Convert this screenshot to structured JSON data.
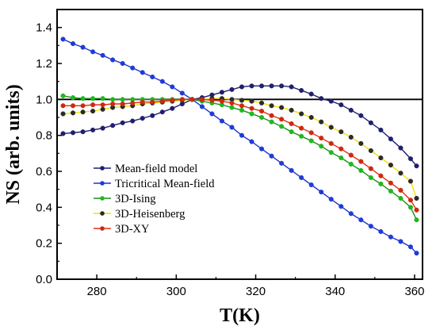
{
  "chart_data": {
    "type": "line",
    "xlabel": "T(K)",
    "ylabel": "NS (arb. units)",
    "xlim": [
      270,
      362
    ],
    "ylim": [
      0,
      1.5
    ],
    "xticks": [
      "280",
      "300",
      "320",
      "340",
      "360"
    ],
    "yticks": [
      "0.0",
      "0.2",
      "0.4",
      "0.6",
      "0.8",
      "1.0",
      "1.2",
      "1.4"
    ],
    "reference_line": 1.0,
    "legend_position": "lower-left",
    "grid": false,
    "series": [
      {
        "name": "Mean-field model",
        "color": "#1f1f6e",
        "marker_color": "#1f1f6e",
        "x": [
          271.5,
          274,
          276.5,
          279,
          281.5,
          284,
          286.5,
          289,
          291.5,
          294,
          296.5,
          299,
          301.5,
          304,
          306.5,
          309,
          311.5,
          314,
          316.5,
          319,
          321.5,
          324,
          326.5,
          329,
          331.5,
          334,
          336.5,
          339,
          341.5,
          344,
          346.5,
          349,
          351.5,
          354,
          356.5,
          359,
          360.5
        ],
        "y": [
          0.81,
          0.815,
          0.82,
          0.83,
          0.84,
          0.855,
          0.87,
          0.88,
          0.895,
          0.91,
          0.93,
          0.95,
          0.975,
          1.0,
          1.01,
          1.025,
          1.04,
          1.055,
          1.07,
          1.075,
          1.075,
          1.075,
          1.075,
          1.07,
          1.05,
          1.03,
          1.005,
          0.99,
          0.97,
          0.94,
          0.91,
          0.87,
          0.83,
          0.78,
          0.73,
          0.67,
          0.63
        ]
      },
      {
        "name": "Tricritical Mean-field",
        "color": "#2332c8",
        "marker_color": "#1e3cd7",
        "x": [
          271.5,
          274,
          276.5,
          279,
          281.5,
          284,
          286.5,
          289,
          291.5,
          294,
          296.5,
          299,
          301.5,
          304,
          306.5,
          309,
          311.5,
          314,
          316.5,
          319,
          321.5,
          324,
          326.5,
          329,
          331.5,
          334,
          336.5,
          339,
          341.5,
          344,
          346.5,
          349,
          351.5,
          354,
          356.5,
          359,
          360.5
        ],
        "y": [
          1.335,
          1.31,
          1.29,
          1.265,
          1.245,
          1.22,
          1.2,
          1.175,
          1.15,
          1.125,
          1.1,
          1.07,
          1.035,
          1.0,
          0.96,
          0.92,
          0.88,
          0.845,
          0.8,
          0.765,
          0.725,
          0.685,
          0.645,
          0.605,
          0.565,
          0.525,
          0.485,
          0.445,
          0.405,
          0.365,
          0.33,
          0.295,
          0.265,
          0.235,
          0.21,
          0.18,
          0.145
        ]
      },
      {
        "name": "3D-Ising",
        "color": "#1e8c1e",
        "marker_color": "#1fb81f",
        "x": [
          271.5,
          274,
          276.5,
          279,
          281.5,
          284,
          286.5,
          289,
          291.5,
          294,
          296.5,
          299,
          301.5,
          304,
          306.5,
          309,
          311.5,
          314,
          316.5,
          319,
          321.5,
          324,
          326.5,
          329,
          331.5,
          334,
          336.5,
          339,
          341.5,
          344,
          346.5,
          349,
          351.5,
          354,
          356.5,
          359,
          360.5
        ],
        "y": [
          1.02,
          1.01,
          1.005,
          1.005,
          1.005,
          1.0,
          1.0,
          1.0,
          1.0,
          1.0,
          1.0,
          1.0,
          1.0,
          1.0,
          0.99,
          0.98,
          0.97,
          0.955,
          0.94,
          0.92,
          0.9,
          0.875,
          0.85,
          0.82,
          0.795,
          0.77,
          0.74,
          0.705,
          0.675,
          0.64,
          0.605,
          0.565,
          0.53,
          0.49,
          0.45,
          0.4,
          0.33
        ]
      },
      {
        "name": "3D-Heisenberg",
        "color": "#f0e000",
        "marker_color": "#2a2a2a",
        "x": [
          271.5,
          274,
          276.5,
          279,
          281.5,
          284,
          286.5,
          289,
          291.5,
          294,
          296.5,
          299,
          301.5,
          304,
          306.5,
          309,
          311.5,
          314,
          316.5,
          319,
          321.5,
          324,
          326.5,
          329,
          331.5,
          334,
          336.5,
          339,
          341.5,
          344,
          346.5,
          349,
          351.5,
          354,
          356.5,
          359,
          360.5
        ],
        "y": [
          0.92,
          0.925,
          0.93,
          0.935,
          0.945,
          0.955,
          0.96,
          0.965,
          0.975,
          0.98,
          0.985,
          0.99,
          0.995,
          1.0,
          1.0,
          1.005,
          1.005,
          1.0,
          0.995,
          0.99,
          0.98,
          0.965,
          0.955,
          0.94,
          0.92,
          0.9,
          0.875,
          0.845,
          0.82,
          0.79,
          0.755,
          0.715,
          0.675,
          0.635,
          0.59,
          0.545,
          0.45
        ]
      },
      {
        "name": "3D-XY",
        "color": "#e03010",
        "marker_color": "#cc2a10",
        "x": [
          271.5,
          274,
          276.5,
          279,
          281.5,
          284,
          286.5,
          289,
          291.5,
          294,
          296.5,
          299,
          301.5,
          304,
          306.5,
          309,
          311.5,
          314,
          316.5,
          319,
          321.5,
          324,
          326.5,
          329,
          331.5,
          334,
          336.5,
          339,
          341.5,
          344,
          346.5,
          349,
          351.5,
          354,
          356.5,
          359,
          360.5
        ],
        "y": [
          0.965,
          0.965,
          0.965,
          0.97,
          0.97,
          0.975,
          0.975,
          0.98,
          0.985,
          0.985,
          0.99,
          0.995,
          1.0,
          1.0,
          1.0,
          0.995,
          0.99,
          0.98,
          0.965,
          0.95,
          0.935,
          0.91,
          0.89,
          0.865,
          0.84,
          0.815,
          0.785,
          0.755,
          0.725,
          0.69,
          0.655,
          0.615,
          0.575,
          0.535,
          0.495,
          0.44,
          0.385
        ]
      }
    ]
  }
}
